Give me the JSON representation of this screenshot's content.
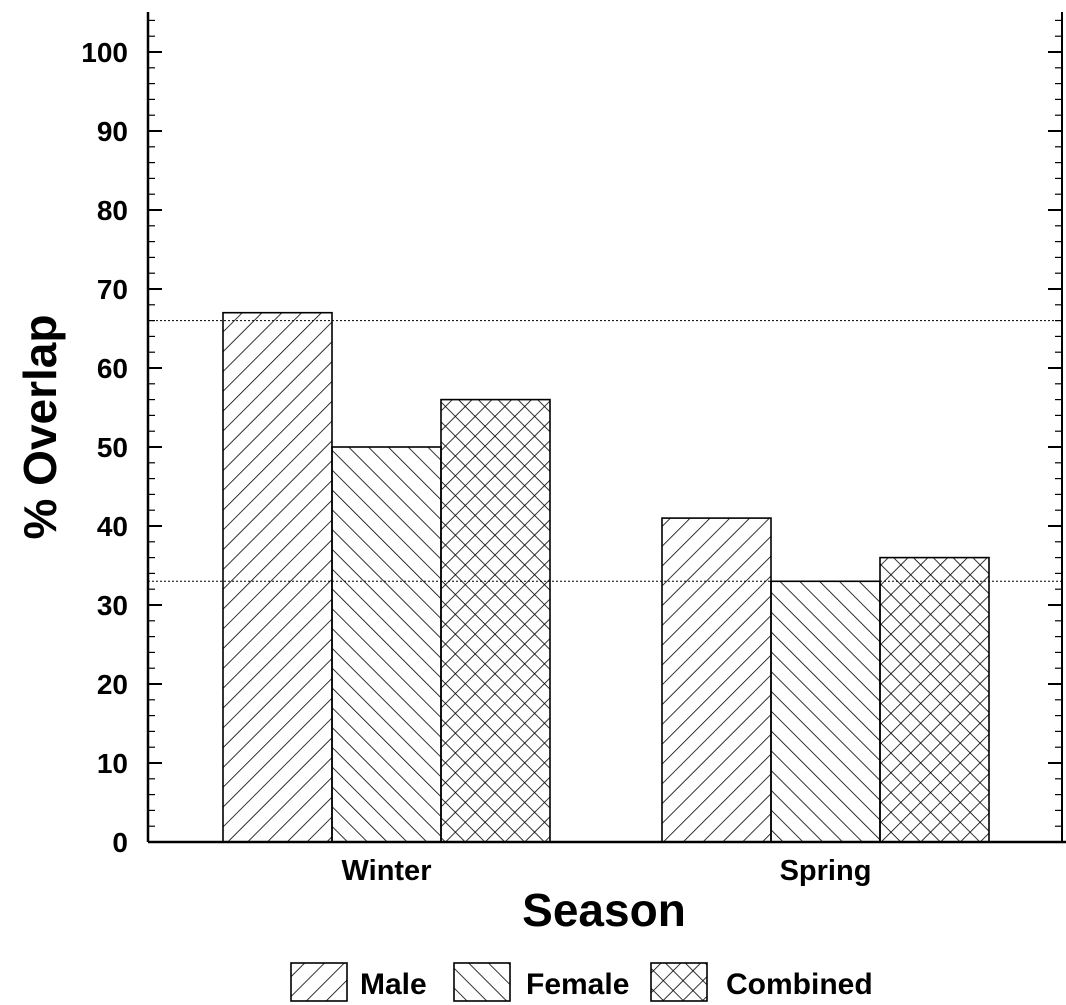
{
  "chart_data": {
    "type": "bar",
    "title": "",
    "xlabel": "Season",
    "ylabel": "% Overlap",
    "categories": [
      "Winter",
      "Spring"
    ],
    "series": [
      {
        "name": "Male",
        "pattern": "forward-diagonal",
        "values": [
          67,
          41
        ]
      },
      {
        "name": "Female",
        "pattern": "backward-diagonal",
        "values": [
          50,
          33
        ]
      },
      {
        "name": "Combined",
        "pattern": "crosshatch",
        "values": [
          56,
          36
        ]
      }
    ],
    "ylim": [
      0,
      105
    ],
    "yticks": [
      0,
      10,
      20,
      30,
      40,
      50,
      60,
      70,
      80,
      90,
      100
    ],
    "yminor_step": 2,
    "reference_lines": [
      66,
      33
    ],
    "grid": false,
    "legend_position": "bottom",
    "colors": {
      "bar_stroke": "#000000",
      "hatch": "#000000",
      "background": "#ffffff"
    }
  }
}
